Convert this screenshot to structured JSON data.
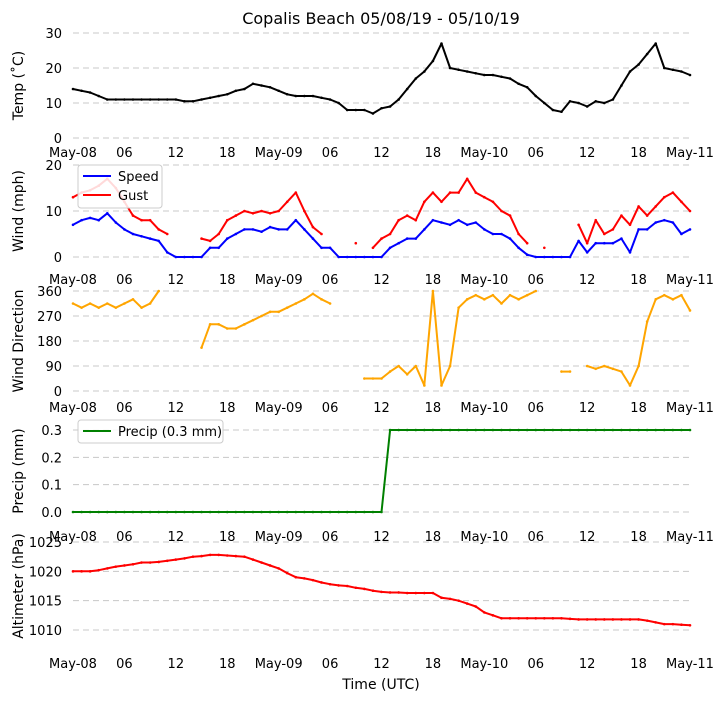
{
  "chart_data": {
    "title": "Copalis Beach 05/08/19 - 05/10/19",
    "xlabel": "Time (UTC)",
    "x_hours_range": [
      0,
      72
    ],
    "x_tick_labels": [
      "May-08",
      "06",
      "12",
      "18",
      "May-09",
      "06",
      "12",
      "18",
      "May-10",
      "06",
      "12",
      "18",
      "May-11"
    ],
    "grid": "horizontal dashed",
    "panels": [
      {
        "type": "line",
        "ylabel": "Temp ($^\\circ$C)",
        "ylabel_display": "Temp (˚C)",
        "ylim": [
          0,
          30
        ],
        "yticks": [
          0,
          10,
          20,
          30
        ],
        "series": [
          {
            "name": "Temp",
            "color": "#000000",
            "values": [
              14,
              13.5,
              13,
              12,
              11,
              11,
              11,
              11,
              11,
              11,
              11,
              11,
              11,
              10.5,
              10.5,
              11,
              11.5,
              12,
              12.5,
              13.5,
              14,
              15.5,
              15,
              14.5,
              13.5,
              12.5,
              12,
              12,
              12,
              11.5,
              11,
              10,
              8,
              8,
              8,
              7,
              8.5,
              9,
              11,
              14,
              17,
              19,
              22,
              27,
              20,
              19.5,
              19,
              18.5,
              18,
              18,
              17.5,
              17,
              15.5,
              14.5,
              12,
              10,
              8,
              7.5,
              10.5,
              10,
              9,
              10.5,
              10,
              11,
              15,
              19,
              21,
              24,
              27,
              20,
              19.5,
              19,
              18
            ]
          }
        ]
      },
      {
        "type": "line",
        "ylabel": "Wind (mph)",
        "ylim": [
          0,
          20
        ],
        "yticks": [
          0,
          10,
          20
        ],
        "legend": "top-left",
        "series": [
          {
            "name": "Speed",
            "color": "#0000ff",
            "values": [
              7,
              8,
              8.5,
              8,
              9.5,
              7.5,
              6,
              5,
              4.5,
              4,
              3.5,
              1,
              0,
              0,
              0,
              0,
              2,
              2,
              4,
              5,
              6,
              6,
              5.5,
              6.5,
              6,
              6,
              8,
              6,
              4,
              2,
              2,
              0,
              0,
              0,
              0,
              0,
              0,
              2,
              3,
              4,
              4,
              6,
              8,
              7.5,
              7,
              8,
              7,
              7.5,
              6,
              5,
              5,
              4,
              2,
              0.5,
              0,
              0,
              0,
              0,
              0,
              3.5,
              1,
              3,
              3,
              3,
              4,
              1,
              6,
              6,
              7.5,
              8,
              7.5,
              5,
              6
            ]
          },
          {
            "name": "Gust",
            "color": "#ff0000",
            "values": [
              13,
              14,
              14.5,
              15.5,
              17,
              15,
              12,
              9,
              8,
              8,
              6,
              5,
              null,
              null,
              null,
              4,
              3.5,
              5,
              8,
              9,
              10,
              9.5,
              10,
              9.5,
              10,
              12,
              14,
              10,
              6.5,
              5,
              null,
              null,
              null,
              3,
              null,
              2,
              4,
              5,
              8,
              9,
              8,
              12,
              14,
              12,
              14,
              14,
              17,
              14,
              13,
              12,
              10,
              9,
              5,
              3,
              null,
              2,
              null,
              null,
              null,
              7,
              3,
              8,
              5,
              6,
              9,
              7,
              11,
              9,
              11,
              13,
              14,
              12,
              10
            ]
          }
        ]
      },
      {
        "type": "line",
        "ylabel": "Wind Direction",
        "ylim": [
          0,
          360
        ],
        "yticks": [
          0,
          90,
          180,
          270,
          360
        ],
        "series": [
          {
            "name": "Direction",
            "color": "#ffa500",
            "values": [
              315,
              300,
              315,
              300,
              315,
              300,
              315,
              330,
              300,
              315,
              360,
              null,
              null,
              null,
              null,
              156,
              240,
              240,
              225,
              225,
              240,
              255,
              270,
              285,
              285,
              300,
              315,
              330,
              350,
              330,
              315,
              null,
              null,
              null,
              45,
              45,
              45,
              70,
              90,
              60,
              90,
              20,
              360,
              20,
              90,
              300,
              330,
              345,
              330,
              345,
              315,
              345,
              330,
              345,
              360,
              null,
              null,
              70,
              70,
              null,
              90,
              80,
              90,
              80,
              70,
              20,
              90,
              250,
              330,
              345,
              330,
              345,
              290
            ]
          }
        ]
      },
      {
        "type": "line",
        "ylabel": "Precip (mm)",
        "ylim": [
          0,
          0.3
        ],
        "yticks": [
          0.0,
          0.1,
          0.2,
          0.3
        ],
        "ytick_labels": [
          "0.0",
          "0.1",
          "0.2",
          "0.3"
        ],
        "legend": "top-left",
        "series": [
          {
            "name": "Precip (0.3 mm)",
            "color": "#008000",
            "values": [
              0,
              0,
              0,
              0,
              0,
              0,
              0,
              0,
              0,
              0,
              0,
              0,
              0,
              0,
              0,
              0,
              0,
              0,
              0,
              0,
              0,
              0,
              0,
              0,
              0,
              0,
              0,
              0,
              0,
              0,
              0,
              0,
              0,
              0,
              0,
              0,
              0,
              0.3,
              0.3,
              0.3,
              0.3,
              0.3,
              0.3,
              0.3,
              0.3,
              0.3,
              0.3,
              0.3,
              0.3,
              0.3,
              0.3,
              0.3,
              0.3,
              0.3,
              0.3,
              0.3,
              0.3,
              0.3,
              0.3,
              0.3,
              0.3,
              0.3,
              0.3,
              0.3,
              0.3,
              0.3,
              0.3,
              0.3,
              0.3,
              0.3,
              0.3,
              0.3,
              0.3
            ]
          }
        ]
      },
      {
        "type": "line",
        "ylabel": "Altimeter (hPa)",
        "ylim": [
          1010,
          1025
        ],
        "yticks": [
          1010,
          1015,
          1020,
          1025
        ],
        "series": [
          {
            "name": "Altimeter",
            "color": "#ff0000",
            "values": [
              1020,
              1020,
              1020,
              1020.2,
              1020.5,
              1020.8,
              1021,
              1021.2,
              1021.5,
              1021.5,
              1021.6,
              1021.8,
              1022,
              1022.2,
              1022.5,
              1022.6,
              1022.8,
              1022.8,
              1022.7,
              1022.6,
              1022.5,
              1022,
              1021.5,
              1021,
              1020.5,
              1019.7,
              1019,
              1018.8,
              1018.5,
              1018.1,
              1017.8,
              1017.6,
              1017.5,
              1017.2,
              1017,
              1016.7,
              1016.5,
              1016.4,
              1016.4,
              1016.3,
              1016.3,
              1016.3,
              1016.3,
              1015.5,
              1015.3,
              1015,
              1014.5,
              1014,
              1013,
              1012.5,
              1012,
              1012,
              1012,
              1012,
              1012,
              1012,
              1012,
              1012,
              1011.9,
              1011.8,
              1011.8,
              1011.8,
              1011.8,
              1011.8,
              1011.8,
              1011.8,
              1011.8,
              1011.6,
              1011.3,
              1011,
              1011,
              1010.9,
              1010.8
            ]
          }
        ]
      }
    ]
  }
}
